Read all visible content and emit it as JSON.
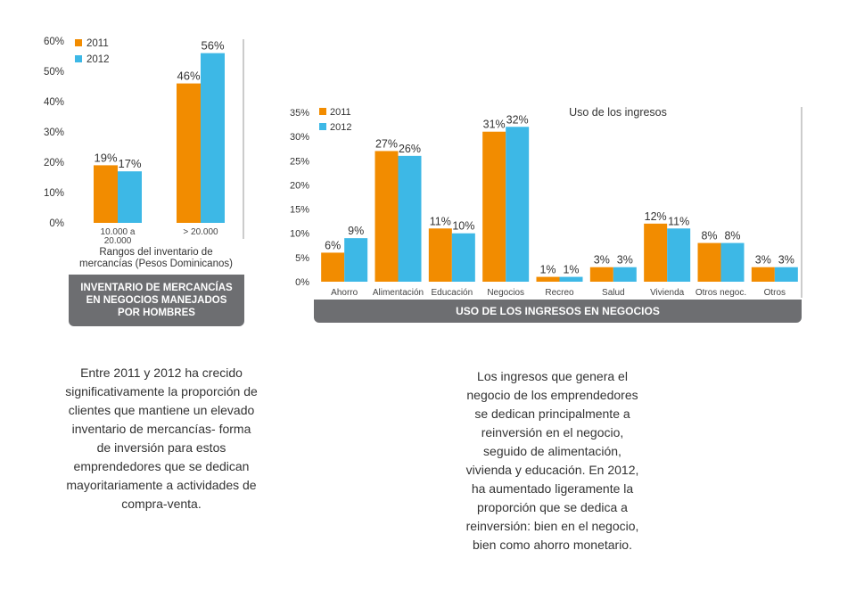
{
  "chart_data": [
    {
      "type": "bar",
      "categories": [
        "10.000 a 20.000",
        "> 20.000"
      ],
      "series": [
        {
          "name": "2011",
          "values": [
            19,
            46
          ],
          "labels": [
            "19%",
            "46%"
          ]
        },
        {
          "name": "2012",
          "values": [
            17,
            56
          ],
          "labels": [
            "17%",
            "56%"
          ]
        }
      ],
      "yticks": [
        "0%",
        "10%",
        "20%",
        "30%",
        "40%",
        "50%",
        "60%"
      ],
      "ylim": [
        0,
        60
      ],
      "xlabel": "Rangos del inventario de mercancías (Pesos Dominicanos)",
      "title": "INVENTARIO DE MERCANCÍAS EN NEGOCIOS MANEJADOS POR HOMBRES",
      "legend": "top-left",
      "grid": false
    },
    {
      "type": "bar",
      "categories": [
        "Ahorro",
        "Alimentación",
        "Educación",
        "Negocios",
        "Recreo",
        "Salud",
        "Vivienda",
        "Otros negoc.",
        "Otros"
      ],
      "series": [
        {
          "name": "2011",
          "values": [
            6,
            27,
            11,
            31,
            1,
            3,
            12,
            8,
            3
          ],
          "labels": [
            "6%",
            "27%",
            "11%",
            "31%",
            "1%",
            "3%",
            "12%",
            "8%",
            "3%"
          ]
        },
        {
          "name": "2012",
          "values": [
            9,
            26,
            10,
            32,
            1,
            3,
            11,
            8,
            3
          ],
          "labels": [
            "9%",
            "26%",
            "10%",
            "32%",
            "1%",
            "3%",
            "11%",
            "8%",
            "3%"
          ]
        }
      ],
      "yticks": [
        "0%",
        "5%",
        "10%",
        "15%",
        "20%",
        "25%",
        "30%",
        "35%"
      ],
      "ylim": [
        0,
        35
      ],
      "subtitle": "Uso de los ingresos",
      "title": "USO DE LOS INGRESOS EN NEGOCIOS",
      "legend": "top-left",
      "grid": false
    }
  ],
  "colors": {
    "s2011": "#f28c00",
    "s2012": "#3db8e6",
    "axis": "#999999",
    "banner": "#6d6e71"
  },
  "text": {
    "banner1": "INVENTARIO DE MERCANCÍAS EN NEGOCIOS MANEJADOS POR HOMBRES",
    "banner2": "USO DE LOS INGRESOS EN NEGOCIOS",
    "desc1": "Entre 2011 y 2012 ha crecido significativamente la proporción de clientes que mantiene un elevado inventario de mercancías- forma de inversión para estos emprendedores que se dedican mayoritariamente a actividades de compra-venta.",
    "desc2": "Los ingresos que genera el negocio de los emprendedores se dedican principalmente a reinversión en el negocio, seguido de alimentación, vivienda y educación. En 2012, ha aumentado ligeramente la proporción que se dedica a reinversión: bien en el negocio, bien como ahorro monetario."
  }
}
